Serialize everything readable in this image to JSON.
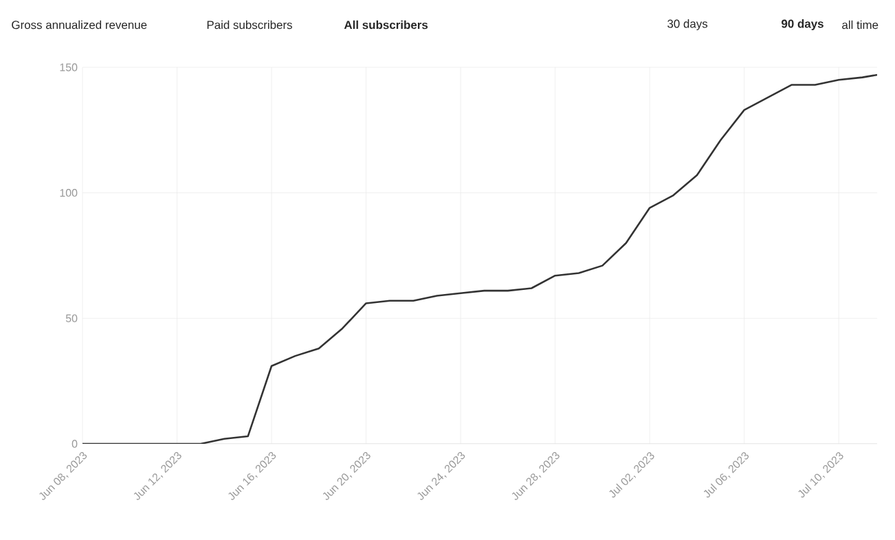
{
  "chart_data": {
    "type": "line",
    "x": [
      "2023-06-08",
      "2023-06-09",
      "2023-06-10",
      "2023-06-11",
      "2023-06-12",
      "2023-06-13",
      "2023-06-14",
      "2023-06-15",
      "2023-06-16",
      "2023-06-17",
      "2023-06-18",
      "2023-06-19",
      "2023-06-20",
      "2023-06-21",
      "2023-06-22",
      "2023-06-23",
      "2023-06-24",
      "2023-06-25",
      "2023-06-26",
      "2023-06-27",
      "2023-06-28",
      "2023-06-29",
      "2023-06-30",
      "2023-07-01",
      "2023-07-02",
      "2023-07-03",
      "2023-07-04",
      "2023-07-05",
      "2023-07-06",
      "2023-07-07",
      "2023-07-08",
      "2023-07-09",
      "2023-07-10",
      "2023-07-11",
      "2023-07-11T15:00"
    ],
    "series": [
      {
        "color": "#333333",
        "values": [
          0,
          0,
          0,
          0,
          0,
          0,
          2,
          3,
          31,
          35,
          38,
          46,
          56,
          57,
          57,
          59,
          60,
          61,
          61,
          62,
          67,
          68,
          71,
          80,
          94,
          99,
          107,
          121,
          133,
          138,
          143,
          143,
          145,
          146,
          147
        ]
      }
    ],
    "xlim": [
      "2023-06-08",
      "2023-07-11T15:00"
    ],
    "xticks": [
      {
        "value": "2023-06-08",
        "label": "Jun 08, 2023"
      },
      {
        "value": "2023-06-12",
        "label": "Jun 12, 2023"
      },
      {
        "value": "2023-06-16",
        "label": "Jun 16, 2023"
      },
      {
        "value": "2023-06-20",
        "label": "Jun 20, 2023"
      },
      {
        "value": "2023-06-24",
        "label": "Jun 24, 2023"
      },
      {
        "value": "2023-06-28",
        "label": "Jun 28, 2023"
      },
      {
        "value": "2023-07-02",
        "label": "Jul 02, 2023"
      },
      {
        "value": "2023-07-06",
        "label": "Jul 06, 2023"
      },
      {
        "value": "2023-07-10",
        "label": "Jul 10, 2023"
      }
    ],
    "ylim": [
      0,
      150
    ],
    "yticks": [
      0,
      50,
      100,
      150
    ],
    "grid": true,
    "marker": "none",
    "line_style": "solid",
    "legend": false,
    "annotations": [
      "Gross annualized revenue",
      "Paid subscribers",
      "**All subscribers**",
      "30 days",
      "**90 days**",
      "all time"
    ]
  }
}
